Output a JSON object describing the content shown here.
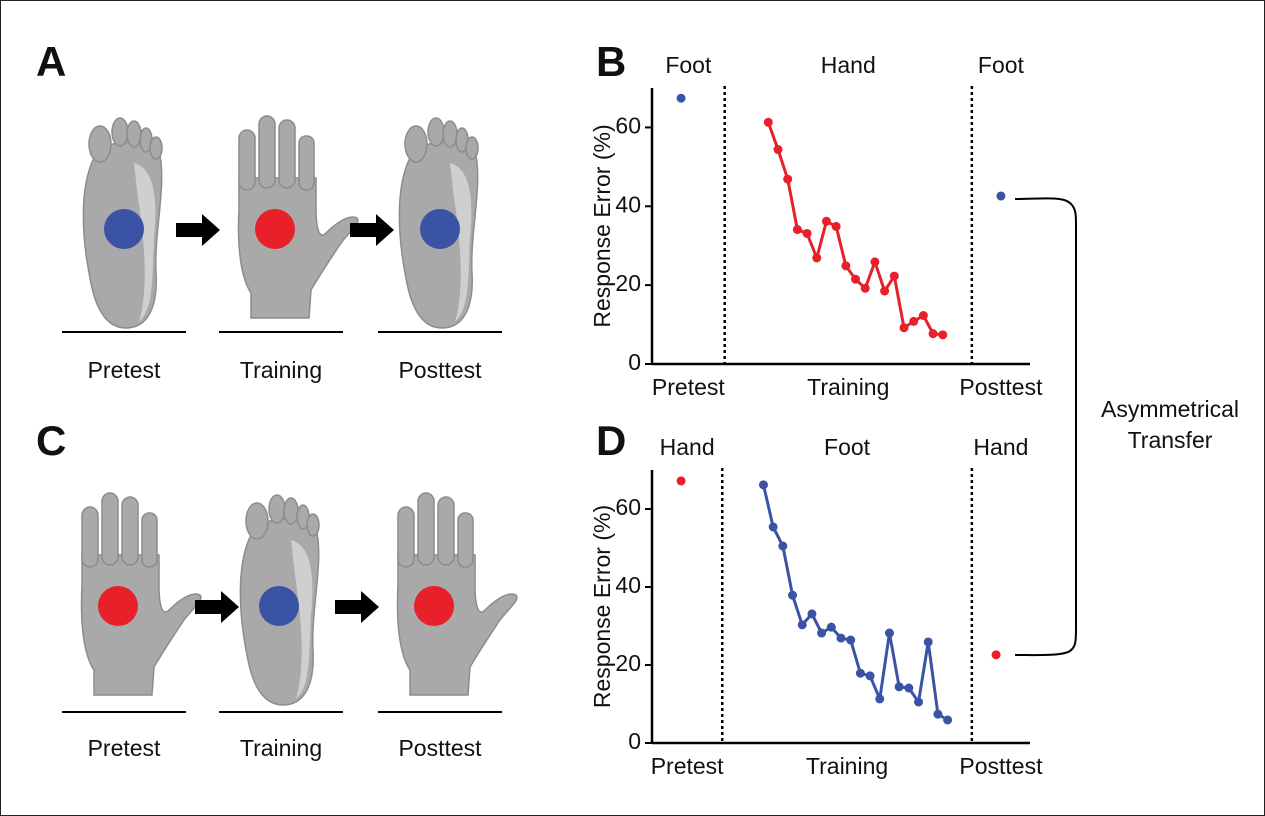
{
  "panel_labels": [
    "A",
    "B",
    "C",
    "D"
  ],
  "diagrams": [
    {
      "steps": [
        "Pretest",
        "Training",
        "Posttest"
      ]
    },
    {
      "steps": [
        "Pretest",
        "Training",
        "Posttest"
      ]
    }
  ],
  "annotation": [
    "Asymmetrical",
    "Transfer"
  ],
  "chart_data": [
    {
      "type": "line",
      "section_labels": [
        "Foot",
        "Hand",
        "Foot"
      ],
      "x_labels": [
        "Pretest",
        "Training",
        "Posttest"
      ],
      "ylabel": "Response Error (%)",
      "xlim": [
        -3,
        36
      ],
      "ylim": [
        0,
        70
      ],
      "yticks": [
        0,
        20,
        40,
        60
      ],
      "series": [
        {
          "color": "#3a53a4",
          "x": [
            0
          ],
          "values": [
            67.4
          ]
        },
        {
          "color": "#e8202a",
          "x": [
            9,
            10,
            11,
            12,
            13,
            14,
            15,
            16,
            17,
            18,
            19,
            20,
            21,
            22,
            23,
            24,
            25,
            26,
            27
          ],
          "values": [
            61.3,
            54.4,
            46.9,
            34.1,
            33.1,
            26.9,
            36.2,
            34.9,
            24.9,
            21.5,
            19.2,
            25.9,
            18.5,
            22.3,
            9.2,
            10.8,
            12.3,
            7.7,
            7.4
          ]
        },
        {
          "color": "#3a53a4",
          "x": [
            33
          ],
          "values": [
            42.6
          ]
        }
      ]
    },
    {
      "type": "line",
      "section_labels": [
        "Hand",
        "Foot",
        "Hand"
      ],
      "x_labels": [
        "Pretest",
        "Training",
        "Posttest"
      ],
      "ylabel": "Response Error (%)",
      "xlim": [
        -3,
        36
      ],
      "ylim": [
        0,
        70
      ],
      "yticks": [
        0,
        20,
        40,
        60
      ],
      "series": [
        {
          "color": "#e8202a",
          "x": [
            0
          ],
          "values": [
            67.2
          ]
        },
        {
          "color": "#3a53a4",
          "x": [
            8.5,
            9.5,
            10.5,
            11.5,
            12.5,
            13.5,
            14.5,
            15.5,
            16.5,
            17.5,
            18.5,
            19.5,
            20.5,
            21.5,
            22.5,
            23.5,
            24.5,
            25.5,
            26.5,
            27.5
          ],
          "values": [
            66.2,
            55.4,
            50.5,
            37.9,
            30.3,
            33.1,
            28.2,
            29.7,
            26.9,
            26.4,
            17.9,
            17.2,
            11.3,
            28.2,
            14.4,
            14.1,
            10.5,
            25.9,
            7.4,
            5.9
          ]
        },
        {
          "color": "#e8202a",
          "x": [
            32.5
          ],
          "values": [
            22.6
          ]
        }
      ]
    }
  ]
}
